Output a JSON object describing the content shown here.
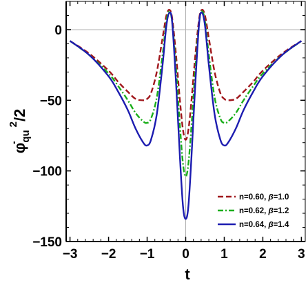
{
  "chart_data": {
    "type": "line",
    "xlabel": "t",
    "ylabel": "φ̇qu²/2",
    "ylabel_parts": {
      "dot_symbol": "φ̇",
      "subscript": "qu",
      "superscript": "2",
      "suffix": "/2"
    },
    "xlim": [
      -3.1,
      3.1
    ],
    "ylim": [
      -150,
      20
    ],
    "xticks": [
      -3,
      -2,
      -1,
      0,
      1,
      2,
      3
    ],
    "xtick_labels": [
      "−3",
      "−2",
      "−1",
      "0",
      "1",
      "2",
      "3"
    ],
    "yticks": [
      0,
      -50,
      -100,
      -150
    ],
    "ytick_labels": [
      "0",
      "−50",
      "−100",
      "−150"
    ],
    "legend_position": "bottom-right",
    "grid": "zero-lines only",
    "series": [
      {
        "name": "n=0.60, β=1.0",
        "label_parts": [
          "n=0.60, ",
          "β",
          "=1.0"
        ],
        "color": "#a0161b",
        "style": "dashed",
        "x": [
          -3,
          -2.5,
          -2,
          -1.75,
          -1.5,
          -1.3,
          -1.1,
          -1,
          -0.9,
          -0.75,
          -0.6,
          -0.5,
          -0.42,
          -0.35,
          -0.25,
          -0.15,
          -0.07,
          0,
          0.07,
          0.15,
          0.25,
          0.35,
          0.42,
          0.5,
          0.6,
          0.75,
          0.9,
          1,
          1.1,
          1.3,
          1.5,
          1.75,
          2,
          2.5,
          3
        ],
        "y": [
          -8,
          -17,
          -29,
          -37,
          -44,
          -49,
          -50,
          -49,
          -45,
          -30,
          -6,
          10,
          14,
          8,
          -18,
          -50,
          -71,
          -78,
          -71,
          -50,
          -18,
          8,
          14,
          10,
          -6,
          -30,
          -45,
          -49,
          -50,
          -49,
          -44,
          -37,
          -29,
          -17,
          -8
        ]
      },
      {
        "name": "n=0.62, β=1.2",
        "label_parts": [
          "n=0.62, ",
          "β",
          "=1.2"
        ],
        "color": "#1aae1a",
        "style": "dot-dash",
        "x": [
          -3,
          -2.5,
          -2,
          -1.75,
          -1.5,
          -1.3,
          -1.1,
          -1,
          -0.9,
          -0.75,
          -0.6,
          -0.5,
          -0.42,
          -0.35,
          -0.25,
          -0.15,
          -0.07,
          0,
          0.07,
          0.15,
          0.25,
          0.35,
          0.42,
          0.5,
          0.6,
          0.75,
          0.9,
          1,
          1.1,
          1.3,
          1.5,
          1.75,
          2,
          2.5,
          3
        ],
        "y": [
          -8,
          -18,
          -31,
          -40,
          -50,
          -59,
          -65,
          -66,
          -63,
          -48,
          -18,
          6,
          13,
          5,
          -28,
          -68,
          -95,
          -104,
          -95,
          -68,
          -28,
          5,
          13,
          6,
          -18,
          -48,
          -63,
          -66,
          -65,
          -59,
          -50,
          -40,
          -31,
          -18,
          -8
        ]
      },
      {
        "name": "n=0.64, β=1.4",
        "label_parts": [
          "n=0.64, ",
          "β",
          "=1.4"
        ],
        "color": "#1c1cb0",
        "style": "solid",
        "x": [
          -3,
          -2.5,
          -2,
          -1.75,
          -1.5,
          -1.3,
          -1.1,
          -1,
          -0.9,
          -0.75,
          -0.6,
          -0.5,
          -0.42,
          -0.35,
          -0.25,
          -0.15,
          -0.07,
          0,
          0.07,
          0.15,
          0.25,
          0.35,
          0.42,
          0.5,
          0.6,
          0.75,
          0.9,
          1,
          1.1,
          1.3,
          1.5,
          1.75,
          2,
          2.5,
          3
        ],
        "y": [
          -8,
          -18,
          -33,
          -44,
          -57,
          -70,
          -80,
          -82,
          -78,
          -60,
          -25,
          3,
          12,
          5,
          -38,
          -90,
          -125,
          -134,
          -125,
          -90,
          -38,
          5,
          12,
          3,
          -25,
          -60,
          -78,
          -82,
          -80,
          -70,
          -57,
          -44,
          -33,
          -18,
          -8
        ]
      }
    ]
  }
}
